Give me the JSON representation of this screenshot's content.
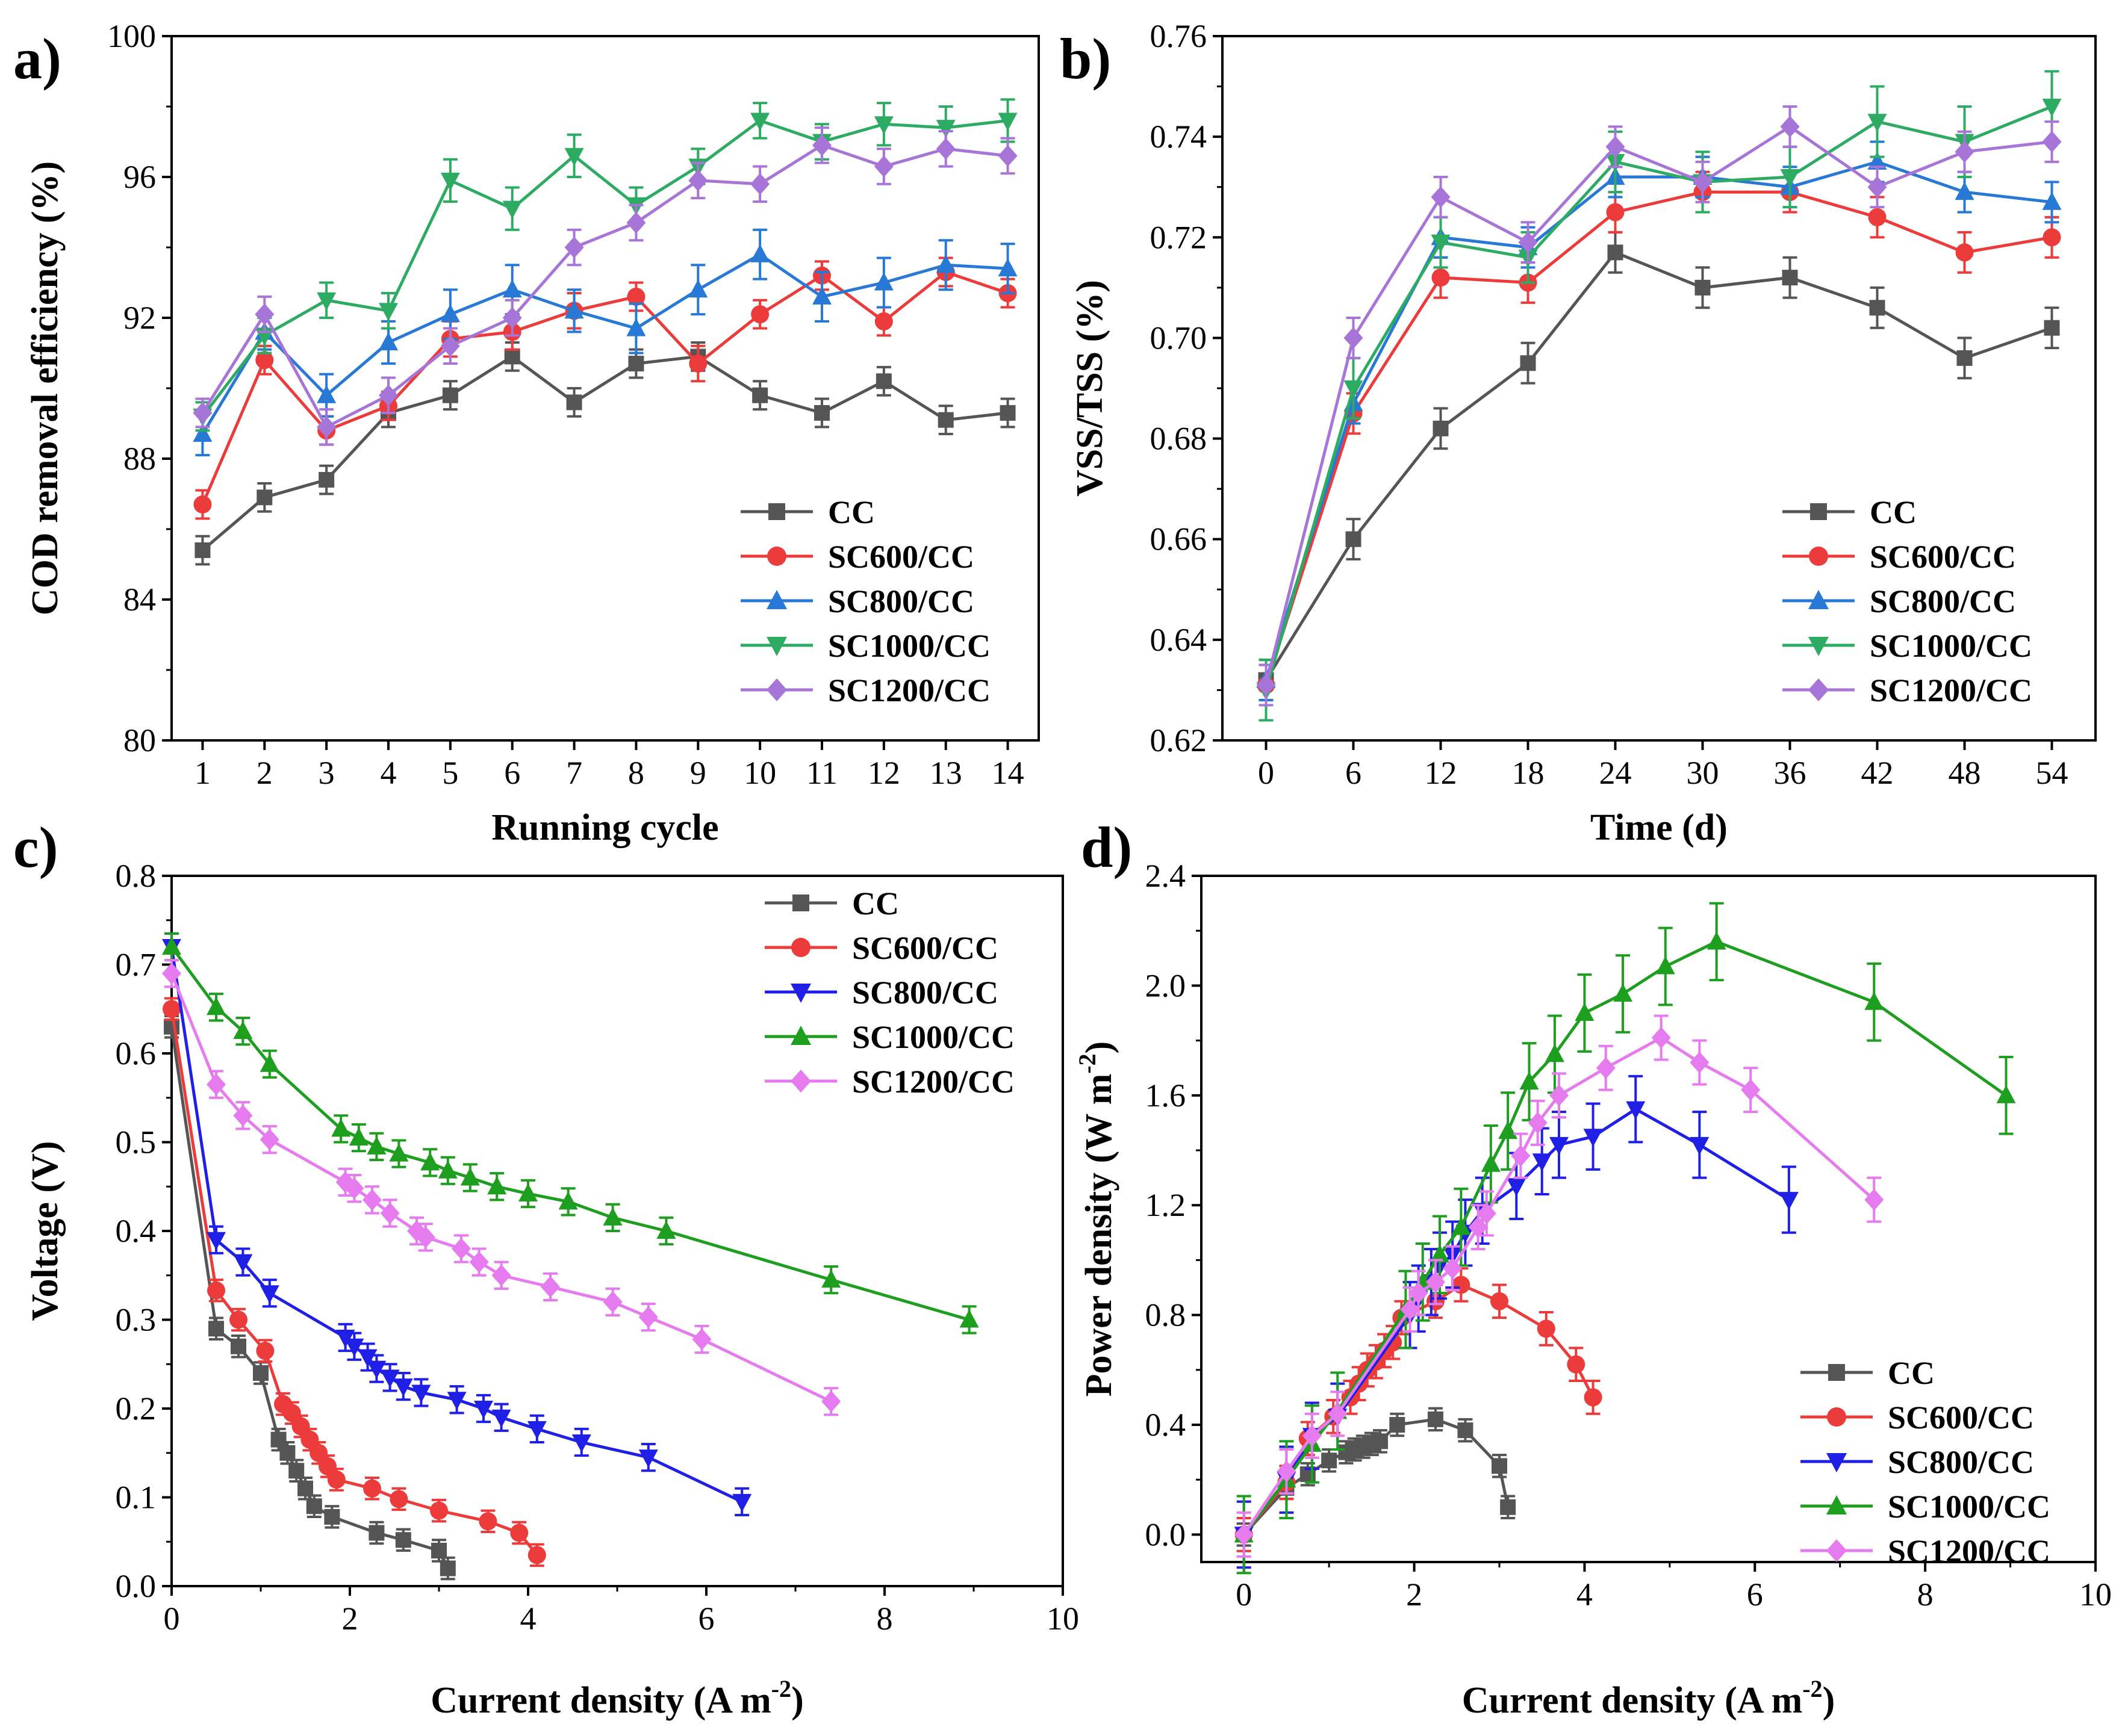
{
  "chart_data": [
    {
      "panel": "a)",
      "type": "line",
      "xlabel": "Running cycle",
      "ylabel": "COD removal efficiency (%)",
      "xlim": [
        0.5,
        14.5
      ],
      "ylim": [
        80,
        100
      ],
      "xticks": [
        1,
        2,
        3,
        4,
        5,
        6,
        7,
        8,
        9,
        10,
        11,
        12,
        13,
        14
      ],
      "yticks": [
        80,
        84,
        88,
        92,
        96,
        100
      ],
      "legend": "bottom-right",
      "x": [
        1,
        2,
        3,
        4,
        5,
        6,
        7,
        8,
        9,
        10,
        11,
        12,
        13,
        14
      ],
      "series": [
        {
          "name": "CC",
          "color": "#555555",
          "marker": "square",
          "values": [
            85.4,
            86.9,
            87.4,
            89.3,
            89.8,
            90.9,
            89.6,
            90.7,
            90.9,
            89.8,
            89.3,
            90.2,
            89.1,
            89.3
          ],
          "err": [
            0.4,
            0.4,
            0.4,
            0.4,
            0.4,
            0.4,
            0.4,
            0.4,
            0.4,
            0.4,
            0.4,
            0.4,
            0.4,
            0.4
          ]
        },
        {
          "name": "SC600/CC",
          "color": "#ec3b3b",
          "marker": "circle",
          "values": [
            86.7,
            90.8,
            88.8,
            89.5,
            91.4,
            91.6,
            92.2,
            92.6,
            90.7,
            92.1,
            93.2,
            91.9,
            93.3,
            92.7
          ],
          "err": [
            0.4,
            0.4,
            0.4,
            0.4,
            0.5,
            0.5,
            0.5,
            0.4,
            0.5,
            0.4,
            0.4,
            0.4,
            0.4,
            0.4
          ]
        },
        {
          "name": "SC800/CC",
          "color": "#2879d6",
          "marker": "triangle-up",
          "values": [
            88.7,
            91.6,
            89.8,
            91.3,
            92.1,
            92.8,
            92.2,
            91.7,
            92.8,
            93.8,
            92.6,
            93.0,
            93.5,
            93.4
          ],
          "err": [
            0.6,
            0.5,
            0.6,
            0.6,
            0.7,
            0.7,
            0.6,
            0.7,
            0.7,
            0.7,
            0.7,
            0.7,
            0.7,
            0.7
          ]
        },
        {
          "name": "SC1000/CC",
          "color": "#2eab63",
          "marker": "triangle-down",
          "values": [
            89.2,
            91.5,
            92.5,
            92.2,
            95.9,
            95.1,
            96.6,
            95.2,
            96.3,
            97.6,
            97.0,
            97.5,
            97.4,
            97.6
          ],
          "err": [
            0.4,
            0.5,
            0.5,
            0.5,
            0.6,
            0.6,
            0.6,
            0.5,
            0.5,
            0.5,
            0.5,
            0.6,
            0.6,
            0.6
          ]
        },
        {
          "name": "SC1200/CC",
          "color": "#a774d8",
          "marker": "diamond",
          "values": [
            89.3,
            92.1,
            88.9,
            89.8,
            91.2,
            92.0,
            94.0,
            94.7,
            95.9,
            95.8,
            96.9,
            96.3,
            96.8,
            96.6
          ],
          "err": [
            0.4,
            0.5,
            0.5,
            0.5,
            0.5,
            0.5,
            0.5,
            0.5,
            0.5,
            0.5,
            0.5,
            0.5,
            0.5,
            0.5
          ]
        }
      ]
    },
    {
      "panel": "b)",
      "type": "line",
      "xlabel": "Time (d)",
      "ylabel": "VSS/TSS (%)",
      "xlim": [
        -3,
        57
      ],
      "ylim": [
        0.62,
        0.76
      ],
      "xticks": [
        0,
        6,
        12,
        18,
        24,
        30,
        36,
        42,
        48,
        54
      ],
      "yticks": [
        0.62,
        0.64,
        0.66,
        0.68,
        0.7,
        0.72,
        0.74,
        0.76
      ],
      "legend": "bottom-right",
      "x": [
        0,
        6,
        12,
        18,
        24,
        30,
        36,
        42,
        48,
        54
      ],
      "series": [
        {
          "name": "CC",
          "color": "#555555",
          "marker": "square",
          "values": [
            0.632,
            0.66,
            0.682,
            0.695,
            0.717,
            0.71,
            0.712,
            0.706,
            0.696,
            0.702
          ],
          "err": [
            0.004,
            0.004,
            0.004,
            0.004,
            0.004,
            0.004,
            0.004,
            0.004,
            0.004,
            0.004
          ]
        },
        {
          "name": "SC600/CC",
          "color": "#ec3b3b",
          "marker": "circle",
          "values": [
            0.631,
            0.685,
            0.712,
            0.711,
            0.725,
            0.729,
            0.729,
            0.724,
            0.717,
            0.72
          ],
          "err": [
            0.004,
            0.004,
            0.004,
            0.004,
            0.004,
            0.004,
            0.004,
            0.004,
            0.004,
            0.004
          ]
        },
        {
          "name": "SC800/CC",
          "color": "#2879d6",
          "marker": "triangle-up",
          "values": [
            0.632,
            0.687,
            0.72,
            0.718,
            0.732,
            0.732,
            0.73,
            0.735,
            0.729,
            0.727
          ],
          "err": [
            0.004,
            0.004,
            0.004,
            0.004,
            0.004,
            0.004,
            0.004,
            0.004,
            0.004,
            0.004
          ]
        },
        {
          "name": "SC1000/CC",
          "color": "#2eab63",
          "marker": "triangle-down",
          "values": [
            0.63,
            0.69,
            0.719,
            0.716,
            0.735,
            0.731,
            0.732,
            0.743,
            0.739,
            0.746
          ],
          "err": [
            0.006,
            0.006,
            0.005,
            0.005,
            0.006,
            0.006,
            0.006,
            0.007,
            0.007,
            0.007
          ]
        },
        {
          "name": "SC1200/CC",
          "color": "#a774d8",
          "marker": "diamond",
          "values": [
            0.631,
            0.7,
            0.728,
            0.719,
            0.738,
            0.731,
            0.742,
            0.73,
            0.737,
            0.739
          ],
          "err": [
            0.004,
            0.004,
            0.004,
            0.004,
            0.004,
            0.004,
            0.004,
            0.004,
            0.004,
            0.004
          ]
        }
      ]
    },
    {
      "panel": "c)",
      "type": "line",
      "xlabel": "Current density (A m",
      "xlabel_sup": "-2",
      "xlabel_end": ")",
      "ylabel": "Voltage (V)",
      "xlim": [
        0,
        10
      ],
      "ylim": [
        0,
        0.8
      ],
      "xticks": [
        0,
        2,
        4,
        6,
        8,
        10
      ],
      "yticks": [
        0.0,
        0.1,
        0.2,
        0.3,
        0.4,
        0.5,
        0.6,
        0.7,
        0.8
      ],
      "legend": "top-right",
      "series": [
        {
          "name": "CC",
          "color": "#555555",
          "marker": "square",
          "x": [
            0,
            0.5,
            0.75,
            1.0,
            1.2,
            1.3,
            1.4,
            1.5,
            1.6,
            1.8,
            2.3,
            2.6,
            3.0,
            3.1
          ],
          "values": [
            0.63,
            0.29,
            0.27,
            0.24,
            0.165,
            0.15,
            0.13,
            0.11,
            0.09,
            0.078,
            0.06,
            0.052,
            0.04,
            0.02
          ],
          "err": 0.012
        },
        {
          "name": "SC600/CC",
          "color": "#ec3b3b",
          "marker": "circle",
          "x": [
            0,
            0.5,
            0.75,
            1.05,
            1.25,
            1.35,
            1.45,
            1.55,
            1.65,
            1.75,
            1.85,
            2.25,
            2.55,
            3.0,
            3.55,
            3.9,
            4.1
          ],
          "values": [
            0.65,
            0.333,
            0.3,
            0.265,
            0.205,
            0.195,
            0.18,
            0.165,
            0.15,
            0.135,
            0.12,
            0.11,
            0.098,
            0.085,
            0.073,
            0.06,
            0.035
          ],
          "err": 0.012
        },
        {
          "name": "SC800/CC",
          "color": "#1f1fe6",
          "marker": "triangle-down",
          "x": [
            0,
            0.5,
            0.8,
            1.1,
            1.95,
            2.05,
            2.2,
            2.3,
            2.45,
            2.6,
            2.8,
            3.2,
            3.5,
            3.7,
            4.1,
            4.6,
            5.35,
            6.4
          ],
          "values": [
            0.72,
            0.39,
            0.365,
            0.33,
            0.28,
            0.27,
            0.258,
            0.245,
            0.235,
            0.225,
            0.218,
            0.21,
            0.2,
            0.19,
            0.177,
            0.162,
            0.145,
            0.095
          ],
          "err": 0.015
        },
        {
          "name": "SC1000/CC",
          "color": "#1e9e1e",
          "marker": "triangle-up",
          "x": [
            0,
            0.5,
            0.8,
            1.1,
            1.9,
            2.1,
            2.3,
            2.55,
            2.9,
            3.1,
            3.35,
            3.65,
            4.0,
            4.45,
            4.95,
            5.55,
            7.4,
            8.95
          ],
          "values": [
            0.72,
            0.652,
            0.625,
            0.588,
            0.515,
            0.505,
            0.495,
            0.487,
            0.477,
            0.468,
            0.46,
            0.45,
            0.442,
            0.433,
            0.415,
            0.4,
            0.345,
            0.3
          ],
          "err": 0.015
        },
        {
          "name": "SC1200/CC",
          "color": "#e67bf0",
          "marker": "diamond",
          "x": [
            0,
            0.5,
            0.8,
            1.1,
            1.95,
            2.05,
            2.25,
            2.45,
            2.75,
            2.85,
            3.25,
            3.45,
            3.7,
            4.25,
            4.95,
            5.35,
            5.95,
            7.4
          ],
          "values": [
            0.69,
            0.565,
            0.53,
            0.503,
            0.455,
            0.448,
            0.435,
            0.42,
            0.4,
            0.393,
            0.38,
            0.365,
            0.35,
            0.337,
            0.32,
            0.303,
            0.278,
            0.208
          ],
          "err": 0.015
        }
      ]
    },
    {
      "panel": "d)",
      "type": "line",
      "xlabel": "Current density (A m",
      "xlabel_sup": "-2",
      "xlabel_end": ")",
      "ylabel": "Power density (W m",
      "ylabel_sup": "-2",
      "ylabel_end": ")",
      "xlim": [
        -0.5,
        10
      ],
      "ylim": [
        -0.1,
        2.4
      ],
      "xticks": [
        0,
        2,
        4,
        6,
        8,
        10
      ],
      "yticks": [
        0.0,
        0.4,
        0.8,
        1.2,
        1.6,
        2.0,
        2.4
      ],
      "legend": "bottom-right",
      "series": [
        {
          "name": "CC",
          "color": "#555555",
          "marker": "square",
          "x": [
            0,
            0.5,
            0.75,
            1.0,
            1.2,
            1.3,
            1.4,
            1.5,
            1.6,
            1.8,
            2.25,
            2.6,
            3.0,
            3.1
          ],
          "values": [
            0,
            0.17,
            0.22,
            0.27,
            0.3,
            0.31,
            0.32,
            0.33,
            0.34,
            0.4,
            0.42,
            0.38,
            0.25,
            0.1
          ],
          "err": 0.04
        },
        {
          "name": "SC600/CC",
          "color": "#ec3b3b",
          "marker": "circle",
          "x": [
            0,
            0.5,
            0.75,
            1.05,
            1.25,
            1.35,
            1.45,
            1.55,
            1.65,
            1.75,
            1.85,
            2.25,
            2.55,
            3.0,
            3.55,
            3.9,
            4.1
          ],
          "values": [
            0,
            0.19,
            0.35,
            0.43,
            0.5,
            0.55,
            0.6,
            0.63,
            0.67,
            0.7,
            0.79,
            0.85,
            0.91,
            0.85,
            0.75,
            0.62,
            0.5
          ],
          "err": 0.06
        },
        {
          "name": "SC800/CC",
          "color": "#1f1fe6",
          "marker": "triangle-down",
          "x": [
            0,
            0.5,
            0.8,
            1.1,
            1.95,
            2.05,
            2.2,
            2.3,
            2.45,
            2.6,
            2.8,
            3.2,
            3.5,
            3.7,
            4.1,
            4.6,
            5.35,
            6.4
          ],
          "values": [
            0,
            0.2,
            0.36,
            0.43,
            0.8,
            0.86,
            0.92,
            0.98,
            1.02,
            1.1,
            1.18,
            1.27,
            1.36,
            1.42,
            1.45,
            1.55,
            1.42,
            1.22
          ],
          "err": 0.12
        },
        {
          "name": "SC1000/CC",
          "color": "#1e9e1e",
          "marker": "triangle-up",
          "x": [
            0,
            0.5,
            0.8,
            1.1,
            1.9,
            2.1,
            2.3,
            2.55,
            2.9,
            3.1,
            3.35,
            3.65,
            4.0,
            4.45,
            4.95,
            5.55,
            7.4,
            8.95
          ],
          "values": [
            0,
            0.2,
            0.33,
            0.45,
            0.82,
            0.92,
            1.02,
            1.12,
            1.35,
            1.47,
            1.65,
            1.75,
            1.9,
            1.97,
            2.07,
            2.16,
            1.94,
            1.6
          ],
          "err": 0.14
        },
        {
          "name": "SC1200/CC",
          "color": "#e67bf0",
          "marker": "diamond",
          "x": [
            0,
            0.5,
            0.8,
            1.1,
            1.95,
            2.05,
            2.25,
            2.45,
            2.75,
            2.85,
            3.25,
            3.45,
            3.7,
            4.25,
            4.9,
            5.35,
            5.95,
            7.4
          ],
          "values": [
            0,
            0.23,
            0.36,
            0.44,
            0.82,
            0.88,
            0.92,
            0.97,
            1.12,
            1.17,
            1.38,
            1.5,
            1.6,
            1.7,
            1.81,
            1.72,
            1.62,
            1.22
          ],
          "err": 0.08
        }
      ]
    }
  ]
}
